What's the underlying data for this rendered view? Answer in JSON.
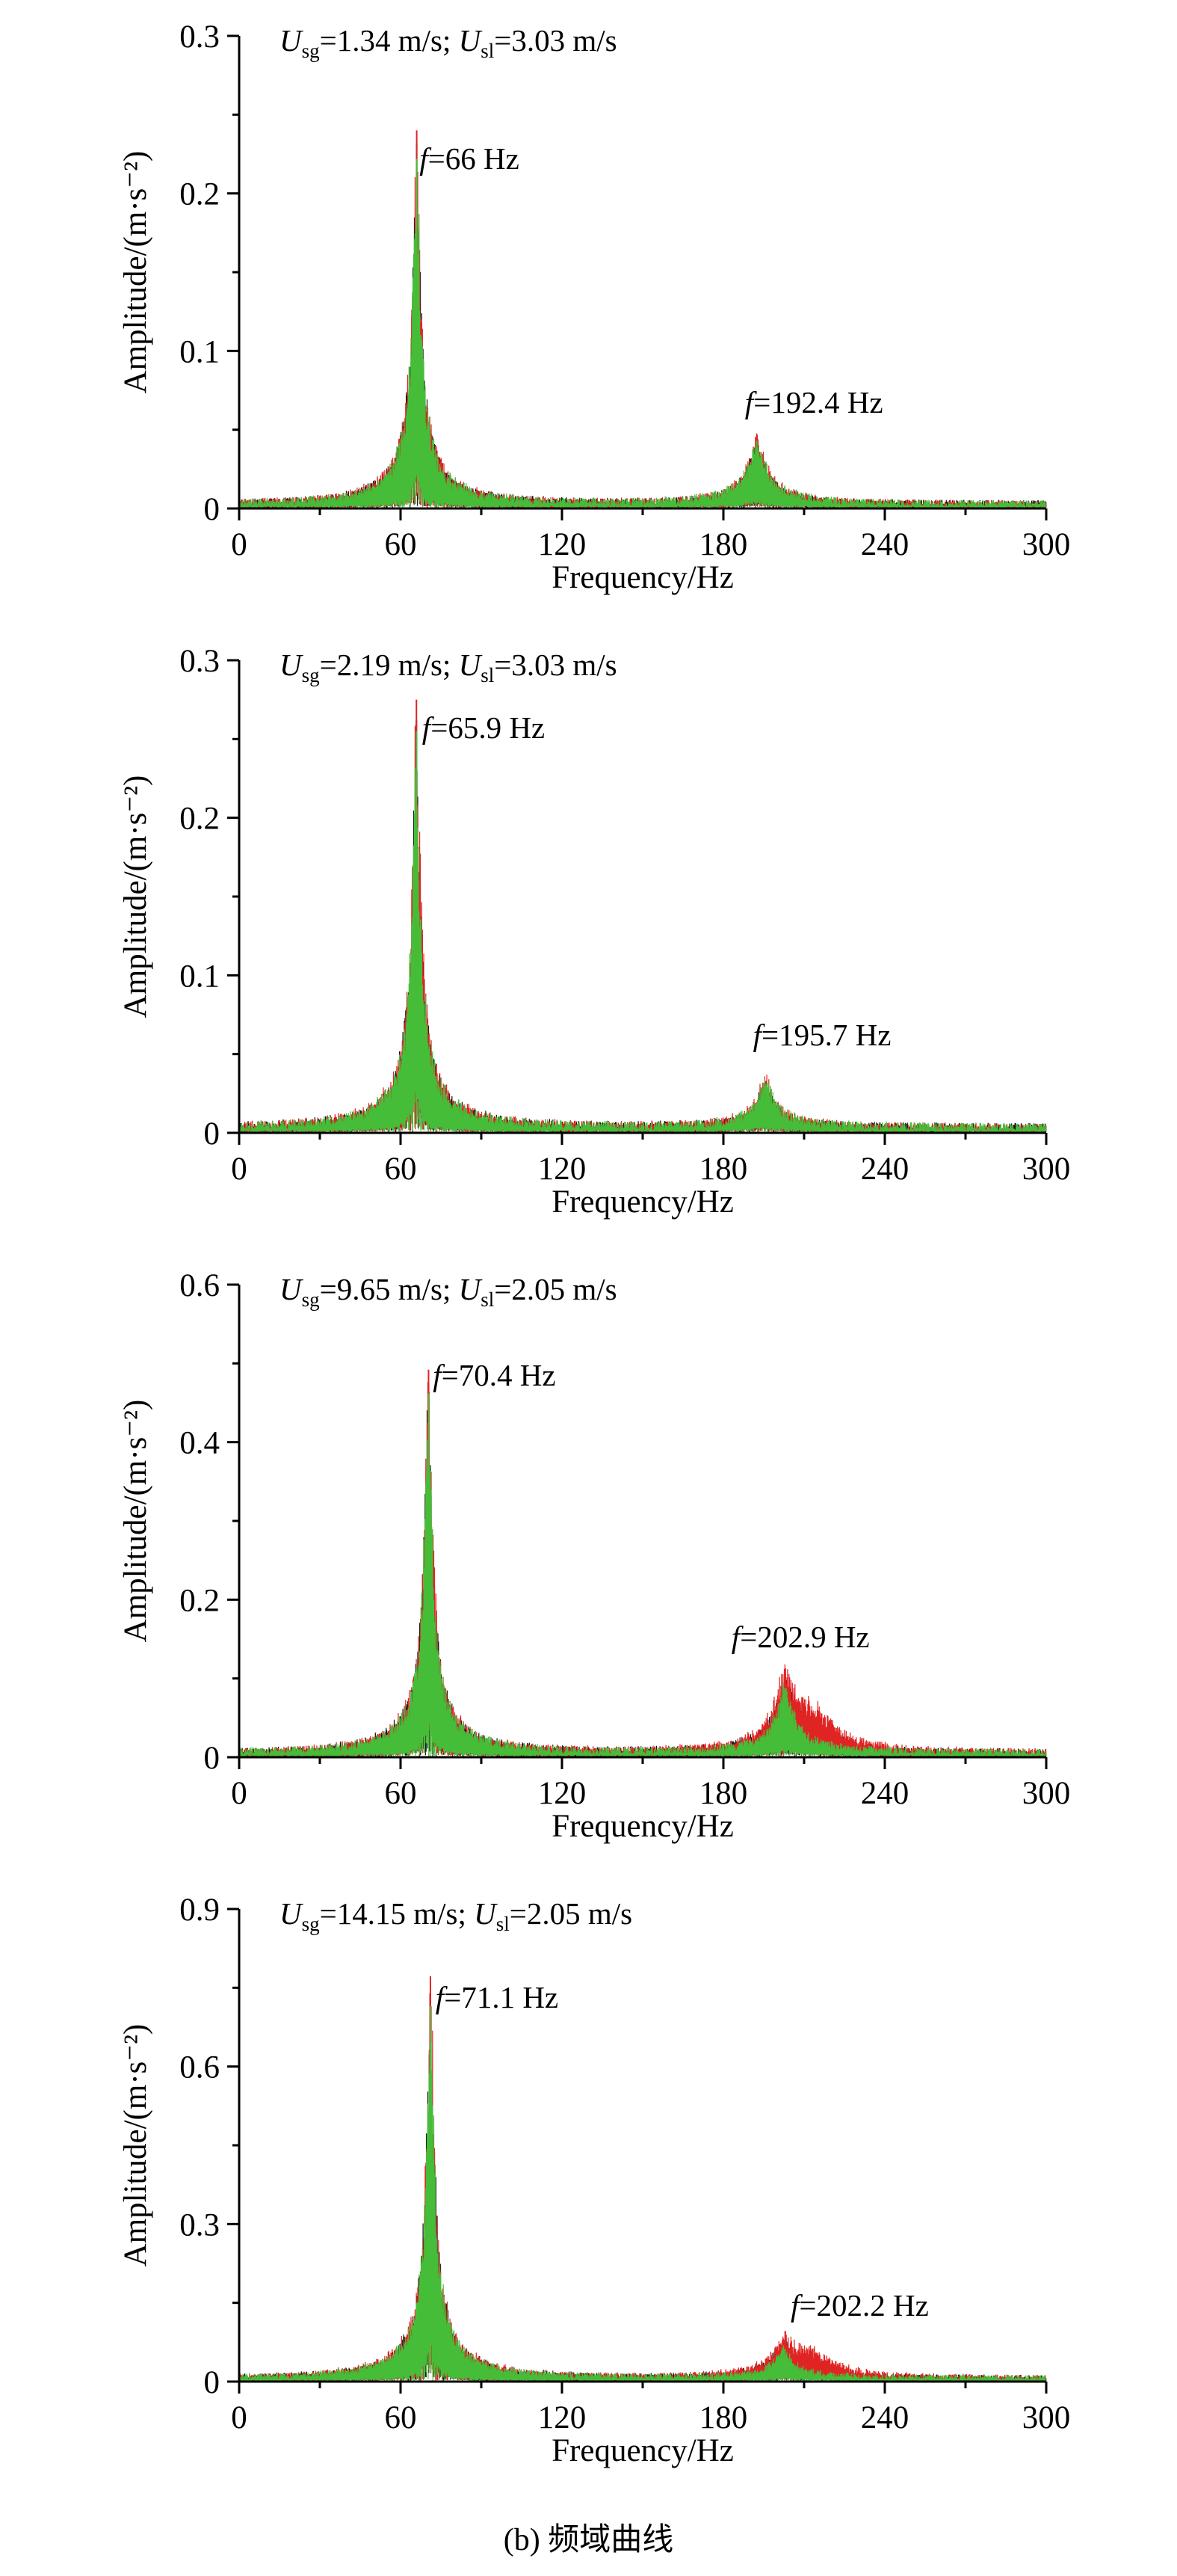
{
  "page": {
    "caption": "(b) 频域曲线"
  },
  "chart_data": [
    {
      "type": "line",
      "xlabel": "Frequency/Hz",
      "ylabel": "Amplitude/(m·s⁻²)",
      "xlim": [
        0,
        300
      ],
      "ylim": [
        0,
        0.3
      ],
      "xticks": [
        "0",
        "60",
        "120",
        "180",
        "240",
        "300"
      ],
      "yticks": [
        "0",
        "0.1",
        "0.2",
        "0.3"
      ],
      "xminor": 30,
      "yminor": 0.05,
      "grid": false,
      "legend": "none",
      "noise": 0.005,
      "condition": {
        "var1": "U",
        "sub1": "sg",
        "eq1": "=1.34 m/s; ",
        "var2": "U",
        "sub2": "sl",
        "eq2": "=3.03 m/s"
      },
      "main_peak_hz": 66,
      "main_peak_amp": 0.24,
      "secondary_peak_hz": 192.4,
      "secondary_peak_amp": 0.046,
      "annotations": [
        {
          "x": 67,
          "y": 0.21,
          "f": "f",
          "text": "=66 Hz"
        },
        {
          "x": 188,
          "y": 0.055,
          "f": "f",
          "text": "=192.4 Hz"
        }
      ],
      "series": [
        {
          "name": "black",
          "color": "#161616",
          "seed": 101,
          "peaks": [
            {
              "f": 66,
              "a": 0.232
            },
            {
              "f": 192.4,
              "a": 0.04,
              "sec": true
            }
          ]
        },
        {
          "name": "red",
          "color": "#e02424",
          "seed": 202,
          "peaks": [
            {
              "f": 66,
              "a": 0.24
            },
            {
              "f": 192.4,
              "a": 0.046,
              "sec": true
            }
          ]
        },
        {
          "name": "green",
          "color": "#45bd39",
          "seed": 303,
          "peaks": [
            {
              "f": 66,
              "a": 0.222
            },
            {
              "f": 192.4,
              "a": 0.043,
              "sec": true
            }
          ]
        }
      ]
    },
    {
      "type": "line",
      "xlabel": "Frequency/Hz",
      "ylabel": "Amplitude/(m·s⁻²)",
      "xlim": [
        0,
        300
      ],
      "ylim": [
        0,
        0.3
      ],
      "xticks": [
        "0",
        "60",
        "120",
        "180",
        "240",
        "300"
      ],
      "yticks": [
        "0",
        "0.1",
        "0.2",
        "0.3"
      ],
      "xminor": 30,
      "yminor": 0.05,
      "grid": false,
      "legend": "none",
      "noise": 0.006,
      "condition": {
        "var1": "U",
        "sub1": "sg",
        "eq1": "=2.19 m/s; ",
        "var2": "U",
        "sub2": "sl",
        "eq2": "=3.03 m/s"
      },
      "main_peak_hz": 65.9,
      "main_peak_amp": 0.275,
      "secondary_peak_hz": 195.7,
      "secondary_peak_amp": 0.033,
      "annotations": [
        {
          "x": 68,
          "y": 0.245,
          "f": "f",
          "text": "=65.9 Hz"
        },
        {
          "x": 191,
          "y": 0.05,
          "f": "f",
          "text": "=195.7 Hz"
        }
      ],
      "series": [
        {
          "name": "black",
          "color": "#161616",
          "seed": 111,
          "peaks": [
            {
              "f": 65.9,
              "a": 0.262
            },
            {
              "f": 195.7,
              "a": 0.028,
              "sec": true
            }
          ]
        },
        {
          "name": "red",
          "color": "#e02424",
          "seed": 212,
          "peaks": [
            {
              "f": 65.9,
              "a": 0.275
            },
            {
              "f": 195.7,
              "a": 0.033,
              "sec": true
            }
          ]
        },
        {
          "name": "green",
          "color": "#45bd39",
          "seed": 313,
          "peaks": [
            {
              "f": 65.9,
              "a": 0.255
            },
            {
              "f": 195.7,
              "a": 0.031,
              "sec": true
            }
          ]
        }
      ]
    },
    {
      "type": "line",
      "xlabel": "Frequency/Hz",
      "ylabel": "Amplitude/(m·s⁻²)",
      "xlim": [
        0,
        300
      ],
      "ylim": [
        0,
        0.6
      ],
      "xticks": [
        "0",
        "60",
        "120",
        "180",
        "240",
        "300"
      ],
      "yticks": [
        "0",
        "0.2",
        "0.4",
        "0.6"
      ],
      "xminor": 30,
      "yminor": 0.1,
      "grid": false,
      "legend": "none",
      "noise": 0.01,
      "condition": {
        "var1": "U",
        "sub1": "sg",
        "eq1": "=9.65 m/s; ",
        "var2": "U",
        "sub2": "sl",
        "eq2": "=2.05 m/s"
      },
      "main_peak_hz": 70.4,
      "main_peak_amp": 0.492,
      "secondary_peak_hz": 202.9,
      "secondary_peak_amp": 0.092,
      "annotations": [
        {
          "x": 72,
          "y": 0.46,
          "f": "f",
          "text": "=70.4 Hz"
        },
        {
          "x": 183,
          "y": 0.128,
          "f": "f",
          "text": "=202.9 Hz"
        }
      ],
      "series": [
        {
          "name": "black",
          "color": "#161616",
          "seed": 121,
          "peaks": [
            {
              "f": 70.4,
              "a": 0.475
            },
            {
              "f": 202.9,
              "a": 0.084,
              "sec": true
            },
            {
              "f": 211,
              "a": 0.026,
              "w": 10
            }
          ]
        },
        {
          "name": "red",
          "color": "#e02424",
          "seed": 222,
          "peaks": [
            {
              "f": 70.4,
              "a": 0.492
            },
            {
              "f": 202.9,
              "a": 0.092,
              "sec": true
            },
            {
              "f": 213,
              "a": 0.046,
              "w": 11
            }
          ]
        },
        {
          "name": "green",
          "color": "#45bd39",
          "seed": 323,
          "peaks": [
            {
              "f": 70.4,
              "a": 0.462
            },
            {
              "f": 202.9,
              "a": 0.088,
              "sec": true
            }
          ]
        }
      ]
    },
    {
      "type": "line",
      "xlabel": "Frequency/Hz",
      "ylabel": "Amplitude/(m·s⁻²)",
      "xlim": [
        0,
        300
      ],
      "ylim": [
        0,
        0.9
      ],
      "xticks": [
        "0",
        "60",
        "120",
        "180",
        "240",
        "300"
      ],
      "yticks": [
        "0",
        "0.3",
        "0.6",
        "0.9"
      ],
      "xminor": 30,
      "yminor": 0.15,
      "grid": false,
      "legend": "none",
      "noise": 0.012,
      "condition": {
        "var1": "U",
        "sub1": "sg",
        "eq1": "=14.15 m/s; ",
        "var2": "U",
        "sub2": "sl",
        "eq2": "=2.05 m/s"
      },
      "main_peak_hz": 71.1,
      "main_peak_amp": 0.772,
      "secondary_peak_hz": 202.2,
      "secondary_peak_amp": 0.064,
      "annotations": [
        {
          "x": 73,
          "y": 0.695,
          "f": "f",
          "text": "=71.1 Hz"
        },
        {
          "x": 205,
          "y": 0.108,
          "f": "f",
          "text": "=202.2 Hz"
        }
      ],
      "series": [
        {
          "name": "black",
          "color": "#161616",
          "seed": 131,
          "peaks": [
            {
              "f": 71.1,
              "a": 0.735
            },
            {
              "f": 202.2,
              "a": 0.056,
              "sec": true
            },
            {
              "f": 210,
              "a": 0.028,
              "w": 10
            }
          ]
        },
        {
          "name": "red",
          "color": "#e02424",
          "seed": 232,
          "peaks": [
            {
              "f": 71.1,
              "a": 0.772
            },
            {
              "f": 202.2,
              "a": 0.064,
              "sec": true
            },
            {
              "f": 212,
              "a": 0.048,
              "w": 11
            }
          ]
        },
        {
          "name": "green",
          "color": "#45bd39",
          "seed": 333,
          "peaks": [
            {
              "f": 71.1,
              "a": 0.715
            },
            {
              "f": 202.2,
              "a": 0.06,
              "sec": true
            }
          ]
        }
      ]
    }
  ]
}
